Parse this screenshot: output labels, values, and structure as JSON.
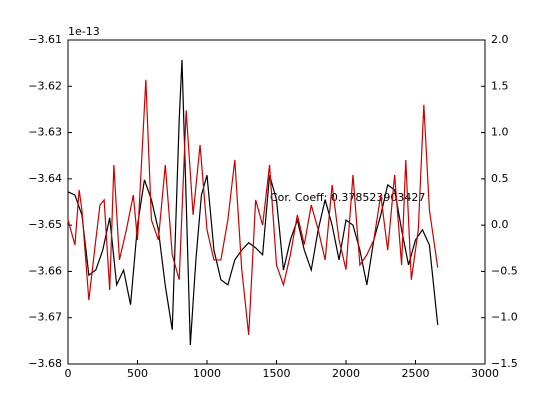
{
  "chart_data": {
    "type": "line",
    "offset_text": "1e-13",
    "annotation": "Cor. Coeff: 0.378523903427",
    "xlim": [
      0,
      3000
    ],
    "xticks": [
      0,
      500,
      1000,
      1500,
      2000,
      2500,
      3000
    ],
    "ylim": [
      -3.68,
      -3.61
    ],
    "yticks": [
      {
        "value": -3.68,
        "label": "−3.68"
      },
      {
        "value": -3.67,
        "label": "−3.67"
      },
      {
        "value": -3.66,
        "label": "−3.66"
      },
      {
        "value": -3.65,
        "label": "−3.65"
      },
      {
        "value": -3.64,
        "label": "−3.64"
      },
      {
        "value": -3.63,
        "label": "−3.63"
      },
      {
        "value": -3.62,
        "label": "−3.62"
      },
      {
        "value": -3.61,
        "label": "−3.61"
      }
    ],
    "y2lim": [
      -1.5,
      2.0
    ],
    "y2ticks": [
      {
        "value": -1.5,
        "label": "−1.5"
      },
      {
        "value": -1.0,
        "label": "−1.0"
      },
      {
        "value": -0.5,
        "label": "−0.5"
      },
      {
        "value": 0,
        "label": "0.0"
      },
      {
        "value": 0.5,
        "label": "0.5"
      },
      {
        "value": 1.0,
        "label": "1.0"
      },
      {
        "value": 1.5,
        "label": "1.5"
      },
      {
        "value": 2.0,
        "label": "2.0"
      }
    ],
    "grid": false,
    "series": [
      {
        "color": "#000000",
        "x": [
          0,
          50,
          100,
          150,
          200,
          250,
          300,
          350,
          400,
          450,
          500,
          550,
          600,
          650,
          700,
          750,
          800,
          820,
          850,
          880,
          920,
          960,
          1000,
          1050,
          1100,
          1150,
          1200,
          1250,
          1300,
          1350,
          1400,
          1450,
          1500,
          1550,
          1600,
          1650,
          1700,
          1750,
          1800,
          1850,
          1900,
          1950,
          2000,
          2050,
          2100,
          2150,
          2200,
          2250,
          2300,
          2350,
          2400,
          2450,
          2500,
          2550,
          2600,
          2660
        ],
        "values": [
          -3.6428,
          -3.6435,
          -3.6478,
          -3.6608,
          -3.6597,
          -3.6554,
          -3.6484,
          -3.6629,
          -3.6597,
          -3.6672,
          -3.65,
          -3.6402,
          -3.6445,
          -3.651,
          -3.6631,
          -3.6726,
          -3.6273,
          -3.6143,
          -3.6445,
          -3.6759,
          -3.6575,
          -3.6435,
          -3.6392,
          -3.6554,
          -3.6618,
          -3.6629,
          -3.6575,
          -3.6554,
          -3.6538,
          -3.6549,
          -3.6564,
          -3.6392,
          -3.6445,
          -3.6597,
          -3.6532,
          -3.6489,
          -3.6554,
          -3.6597,
          -3.651,
          -3.6445,
          -3.65,
          -3.6575,
          -3.6489,
          -3.65,
          -3.6554,
          -3.6629,
          -3.6532,
          -3.6478,
          -3.6413,
          -3.6424,
          -3.651,
          -3.6586,
          -3.6532,
          -3.651,
          -3.6543,
          -3.6716
        ]
      },
      {
        "color": "#cc0000",
        "axis": "y2",
        "x": [
          0,
          50,
          80,
          100,
          150,
          200,
          230,
          260,
          300,
          330,
          370,
          420,
          470,
          500,
          560,
          600,
          650,
          700,
          750,
          800,
          850,
          900,
          950,
          1000,
          1050,
          1100,
          1150,
          1200,
          1250,
          1300,
          1350,
          1400,
          1450,
          1500,
          1550,
          1600,
          1650,
          1700,
          1750,
          1800,
          1850,
          1900,
          1950,
          2000,
          2050,
          2100,
          2150,
          2200,
          2250,
          2300,
          2350,
          2400,
          2430,
          2470,
          2520,
          2560,
          2600,
          2660
        ],
        "values": [
          0.056,
          -0.214,
          0.38,
          0.164,
          -0.81,
          -0.16,
          0.218,
          0.272,
          -0.7,
          0.65,
          -0.376,
          -0.05,
          0.326,
          -0.16,
          1.57,
          0.056,
          -0.16,
          0.65,
          -0.32,
          -0.59,
          1.24,
          0.11,
          0.866,
          -0.05,
          -0.376,
          -0.376,
          0.056,
          0.704,
          -0.48,
          -1.186,
          0.272,
          0.0,
          0.65,
          -0.43,
          -0.646,
          -0.32,
          0.11,
          -0.21,
          0.218,
          -0.05,
          -0.376,
          0.434,
          -0.16,
          -0.48,
          0.542,
          -0.43,
          -0.32,
          -0.16,
          0.326,
          -0.27,
          0.542,
          -0.43,
          0.704,
          -0.59,
          -0.05,
          1.3,
          0.164,
          -0.46
        ]
      }
    ]
  }
}
